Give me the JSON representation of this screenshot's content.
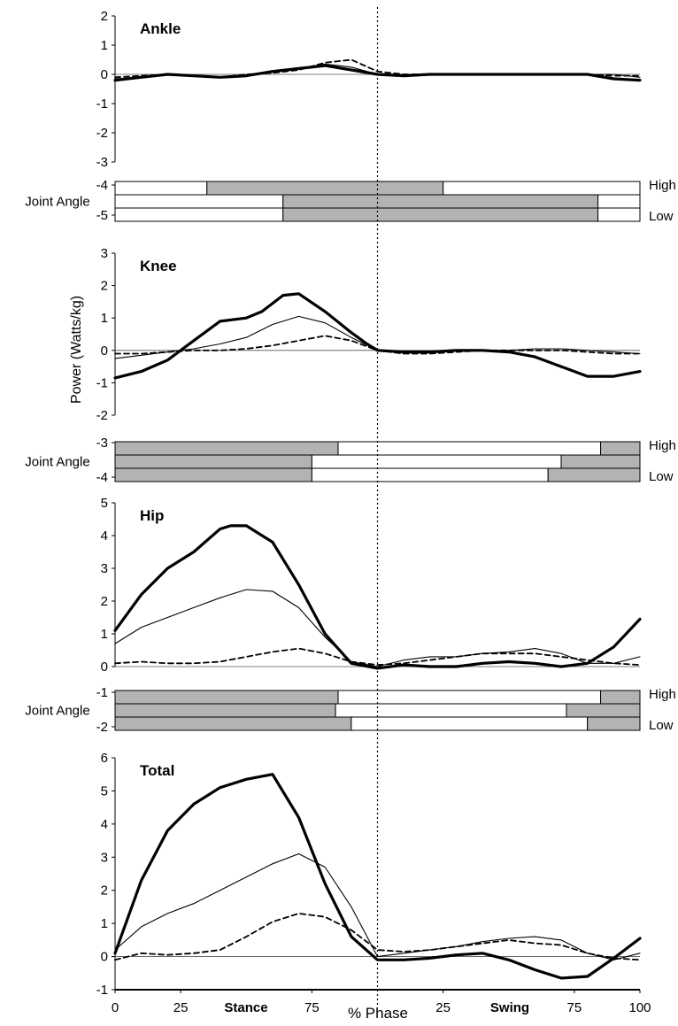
{
  "chart_data": {
    "type": "line",
    "ylabel": "Power (Watts/kg)",
    "xlabel": "% Phase",
    "phase_labels": [
      "Stance",
      "Swing"
    ],
    "x_ticks": [
      "0",
      "25",
      "75",
      "25",
      "75",
      "100"
    ],
    "x_tick_values": [
      0,
      12.5,
      37.5,
      62.5,
      87.5,
      100
    ],
    "xlim": [
      0,
      100
    ],
    "band_side_label": "Joint Angle",
    "band_level_labels": [
      "High",
      "Low"
    ],
    "colors": {
      "shaded": "#b3b3b3",
      "line": "#000000"
    },
    "panels": [
      {
        "title": "Ankle",
        "ylim": [
          -3,
          2
        ],
        "yticks": [
          2,
          1,
          0,
          -1,
          -2,
          -3
        ],
        "band_ticks": [
          "-4",
          "-5"
        ],
        "series": [
          {
            "style": "thick",
            "x": [
              0,
              5,
              10,
              15,
              20,
              25,
              30,
              35,
              40,
              45,
              50,
              55,
              60,
              65,
              70,
              75,
              80,
              85,
              90,
              95,
              100
            ],
            "y": [
              -0.2,
              -0.1,
              0,
              -0.05,
              -0.1,
              -0.05,
              0.1,
              0.2,
              0.3,
              0.15,
              0,
              -0.05,
              0,
              0,
              0,
              0,
              0,
              0,
              0,
              -0.15,
              -0.2
            ]
          },
          {
            "style": "thin",
            "x": [
              0,
              5,
              10,
              15,
              20,
              25,
              30,
              35,
              40,
              45,
              50,
              55,
              60,
              65,
              70,
              75,
              80,
              85,
              90,
              95,
              100
            ],
            "y": [
              -0.15,
              -0.1,
              0,
              -0.05,
              -0.1,
              -0.05,
              0.1,
              0.2,
              0.35,
              0.25,
              0,
              0,
              0,
              0,
              0,
              0,
              0,
              0,
              0,
              0,
              -0.1
            ]
          },
          {
            "style": "dashed",
            "x": [
              0,
              5,
              10,
              15,
              20,
              25,
              30,
              35,
              40,
              45,
              50,
              55,
              60,
              65,
              70,
              75,
              80,
              85,
              90,
              95,
              100
            ],
            "y": [
              -0.1,
              -0.05,
              0,
              -0.05,
              -0.1,
              0,
              0.05,
              0.15,
              0.4,
              0.5,
              0.1,
              0,
              0,
              0,
              0,
              0,
              0,
              0,
              0,
              -0.05,
              -0.05
            ]
          }
        ],
        "bands": [
          [
            {
              "start": 0,
              "end": 17.5,
              "shaded": false
            },
            {
              "start": 17.5,
              "end": 62.5,
              "shaded": true
            },
            {
              "start": 62.5,
              "end": 100,
              "shaded": false
            }
          ],
          [
            {
              "start": 0,
              "end": 32,
              "shaded": false
            },
            {
              "start": 32,
              "end": 92,
              "shaded": true
            },
            {
              "start": 92,
              "end": 100,
              "shaded": false
            }
          ],
          [
            {
              "start": 0,
              "end": 32,
              "shaded": false
            },
            {
              "start": 32,
              "end": 92,
              "shaded": true
            },
            {
              "start": 92,
              "end": 100,
              "shaded": false
            }
          ]
        ]
      },
      {
        "title": "Knee",
        "ylim": [
          -2,
          3
        ],
        "yticks": [
          3,
          2,
          1,
          0,
          -1,
          -2
        ],
        "band_ticks": [
          "-3",
          "-4"
        ],
        "series": [
          {
            "style": "thick",
            "x": [
              0,
              5,
              10,
              15,
              20,
              25,
              28,
              32,
              35,
              40,
              45,
              48,
              50,
              55,
              60,
              65,
              70,
              75,
              80,
              85,
              90,
              95,
              100
            ],
            "y": [
              -0.85,
              -0.65,
              -0.3,
              0.3,
              0.9,
              1.0,
              1.2,
              1.7,
              1.75,
              1.2,
              0.55,
              0.2,
              0,
              -0.05,
              -0.05,
              0,
              0,
              -0.05,
              -0.2,
              -0.5,
              -0.8,
              -0.8,
              -0.65
            ]
          },
          {
            "style": "thin",
            "x": [
              0,
              5,
              10,
              15,
              20,
              25,
              30,
              35,
              40,
              45,
              50,
              55,
              60,
              65,
              70,
              75,
              80,
              85,
              90,
              95,
              100
            ],
            "y": [
              -0.25,
              -0.15,
              -0.05,
              0.05,
              0.2,
              0.4,
              0.8,
              1.05,
              0.85,
              0.4,
              0,
              -0.05,
              -0.05,
              0,
              0,
              0,
              0.05,
              0.05,
              0,
              -0.05,
              -0.1
            ]
          },
          {
            "style": "dashed",
            "x": [
              0,
              5,
              10,
              15,
              20,
              25,
              30,
              35,
              40,
              45,
              50,
              55,
              60,
              65,
              70,
              75,
              80,
              85,
              90,
              95,
              100
            ],
            "y": [
              -0.1,
              -0.1,
              -0.05,
              0,
              0,
              0.05,
              0.15,
              0.3,
              0.45,
              0.3,
              0,
              -0.1,
              -0.1,
              -0.05,
              0,
              0,
              0,
              0,
              -0.05,
              -0.1,
              -0.1
            ]
          }
        ],
        "bands": [
          [
            {
              "start": 0,
              "end": 42.5,
              "shaded": true
            },
            {
              "start": 42.5,
              "end": 92.5,
              "shaded": false
            },
            {
              "start": 92.5,
              "end": 100,
              "shaded": true
            }
          ],
          [
            {
              "start": 0,
              "end": 37.5,
              "shaded": true
            },
            {
              "start": 37.5,
              "end": 85,
              "shaded": false
            },
            {
              "start": 85,
              "end": 100,
              "shaded": true
            }
          ],
          [
            {
              "start": 0,
              "end": 37.5,
              "shaded": true
            },
            {
              "start": 37.5,
              "end": 82.5,
              "shaded": false
            },
            {
              "start": 82.5,
              "end": 100,
              "shaded": true
            }
          ]
        ]
      },
      {
        "title": "Hip",
        "ylim": [
          0,
          5
        ],
        "yticks": [
          5,
          4,
          3,
          2,
          1,
          0
        ],
        "band_ticks": [
          "-1",
          "-2"
        ],
        "series": [
          {
            "style": "thick",
            "x": [
              0,
              5,
              10,
              15,
              20,
              22,
              25,
              30,
              35,
              40,
              45,
              50,
              55,
              60,
              65,
              70,
              75,
              80,
              85,
              90,
              95,
              100
            ],
            "y": [
              1.1,
              2.2,
              3.0,
              3.5,
              4.2,
              4.3,
              4.3,
              3.8,
              2.5,
              1.0,
              0.1,
              -0.05,
              0.05,
              0,
              0,
              0.1,
              0.15,
              0.1,
              0,
              0.1,
              0.6,
              1.45
            ]
          },
          {
            "style": "thin",
            "x": [
              0,
              5,
              10,
              15,
              20,
              25,
              30,
              35,
              40,
              45,
              50,
              55,
              60,
              65,
              70,
              75,
              80,
              85,
              90,
              95,
              100
            ],
            "y": [
              0.7,
              1.2,
              1.5,
              1.8,
              2.1,
              2.35,
              2.3,
              1.8,
              0.9,
              0.15,
              0,
              0.2,
              0.3,
              0.3,
              0.4,
              0.45,
              0.55,
              0.4,
              0.1,
              0.1,
              0.3
            ]
          },
          {
            "style": "dashed",
            "x": [
              0,
              5,
              10,
              15,
              20,
              25,
              30,
              35,
              40,
              45,
              50,
              55,
              60,
              65,
              70,
              75,
              80,
              85,
              90,
              95,
              100
            ],
            "y": [
              0.1,
              0.15,
              0.1,
              0.1,
              0.15,
              0.3,
              0.45,
              0.55,
              0.4,
              0.15,
              0.05,
              0.1,
              0.2,
              0.3,
              0.4,
              0.4,
              0.4,
              0.3,
              0.2,
              0.1,
              0.05
            ]
          }
        ],
        "bands": [
          [
            {
              "start": 0,
              "end": 42.5,
              "shaded": true
            },
            {
              "start": 42.5,
              "end": 92.5,
              "shaded": false
            },
            {
              "start": 92.5,
              "end": 100,
              "shaded": true
            }
          ],
          [
            {
              "start": 0,
              "end": 42,
              "shaded": true
            },
            {
              "start": 42,
              "end": 86,
              "shaded": false
            },
            {
              "start": 86,
              "end": 100,
              "shaded": true
            }
          ],
          [
            {
              "start": 0,
              "end": 45,
              "shaded": true
            },
            {
              "start": 45,
              "end": 90,
              "shaded": false
            },
            {
              "start": 90,
              "end": 100,
              "shaded": true
            }
          ]
        ]
      },
      {
        "title": "Total",
        "ylim": [
          -1,
          6
        ],
        "yticks": [
          6,
          5,
          4,
          3,
          2,
          1,
          0,
          -1
        ],
        "band_ticks": [],
        "series": [
          {
            "style": "thick",
            "x": [
              0,
              5,
              10,
              15,
              20,
              25,
              30,
              35,
              40,
              45,
              50,
              55,
              60,
              65,
              70,
              75,
              80,
              85,
              90,
              95,
              100
            ],
            "y": [
              0.1,
              2.3,
              3.8,
              4.6,
              5.1,
              5.35,
              5.5,
              4.2,
              2.2,
              0.6,
              -0.1,
              -0.1,
              -0.05,
              0.05,
              0.1,
              -0.1,
              -0.4,
              -0.65,
              -0.6,
              -0.05,
              0.55
            ]
          },
          {
            "style": "thin",
            "x": [
              0,
              5,
              10,
              15,
              20,
              25,
              30,
              35,
              40,
              45,
              50,
              55,
              60,
              65,
              70,
              75,
              80,
              85,
              90,
              95,
              100
            ],
            "y": [
              0.2,
              0.9,
              1.3,
              1.6,
              2.0,
              2.4,
              2.8,
              3.1,
              2.7,
              1.5,
              0,
              0.1,
              0.2,
              0.3,
              0.45,
              0.55,
              0.6,
              0.5,
              0.1,
              -0.1,
              0.1
            ]
          },
          {
            "style": "dashed",
            "x": [
              0,
              5,
              10,
              15,
              20,
              25,
              30,
              35,
              40,
              45,
              50,
              55,
              60,
              65,
              70,
              75,
              80,
              85,
              90,
              95,
              100
            ],
            "y": [
              -0.1,
              0.1,
              0.05,
              0.1,
              0.2,
              0.6,
              1.05,
              1.3,
              1.2,
              0.8,
              0.2,
              0.15,
              0.2,
              0.3,
              0.4,
              0.5,
              0.4,
              0.35,
              0.1,
              -0.05,
              -0.1
            ]
          }
        ],
        "bands": []
      }
    ]
  }
}
